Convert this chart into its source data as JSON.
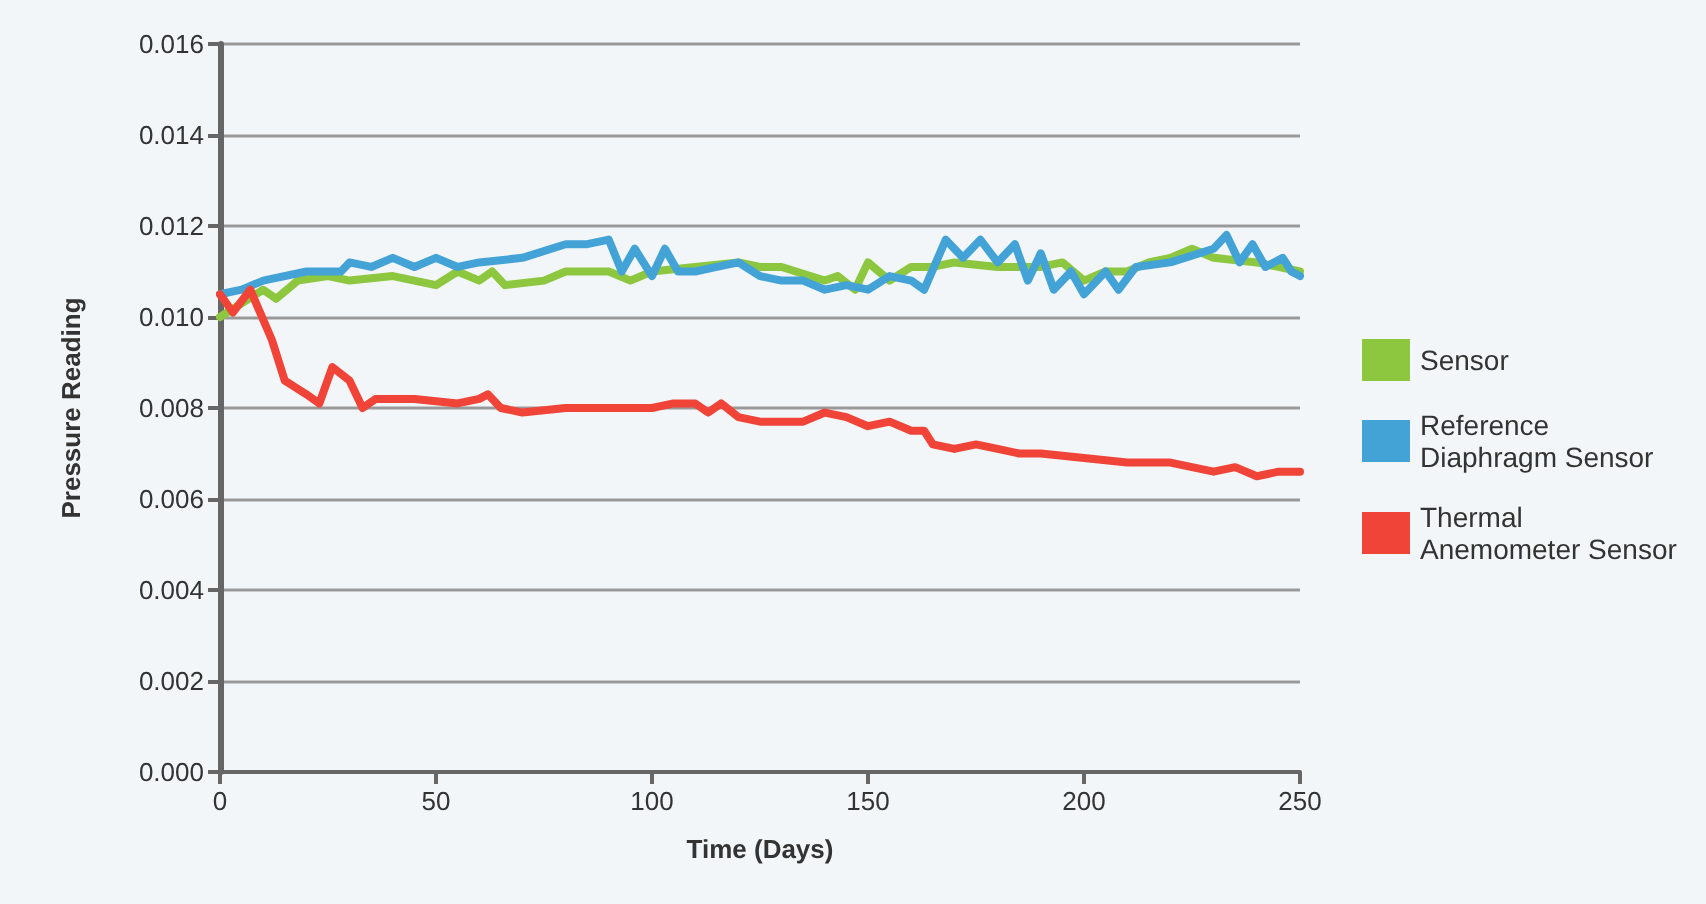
{
  "chart_data": {
    "type": "line",
    "xlabel": "Time (Days)",
    "ylabel": "Pressure Reading",
    "xlim": [
      0,
      250
    ],
    "xticks": [
      0,
      50,
      100,
      150,
      200,
      250
    ],
    "ylim": [
      0,
      0.016
    ],
    "yticks": [
      {
        "value": 0,
        "label": "0.000"
      },
      {
        "value": 0.002,
        "label": "0.002"
      },
      {
        "value": 0.004,
        "label": "0.004"
      },
      {
        "value": 0.006,
        "label": "0.006"
      },
      {
        "value": 0.008,
        "label": "0.008"
      },
      {
        "value": 0.01,
        "label": "0.010"
      },
      {
        "value": 0.012,
        "label": "0.012"
      },
      {
        "value": 0.014,
        "label": "0.014"
      },
      {
        "value": 0.016,
        "label": "0.016"
      }
    ],
    "grid": "y",
    "legend": "right",
    "marker": "none",
    "line_style": "solid",
    "series": [
      {
        "name": "Sensor",
        "color": "#8dc63f",
        "x": [
          0,
          5,
          10,
          13,
          18,
          25,
          30,
          40,
          50,
          55,
          60,
          63,
          66,
          75,
          80,
          90,
          95,
          100,
          110,
          120,
          125,
          130,
          140,
          143,
          147,
          150,
          155,
          160,
          165,
          170,
          180,
          190,
          195,
          200,
          205,
          210,
          215,
          220,
          225,
          230,
          240,
          245,
          250
        ],
        "values": [
          0.01,
          0.0103,
          0.0106,
          0.0104,
          0.0108,
          0.0109,
          0.0108,
          0.0109,
          0.0107,
          0.011,
          0.0108,
          0.011,
          0.0107,
          0.0108,
          0.011,
          0.011,
          0.0108,
          0.011,
          0.0111,
          0.0112,
          0.0111,
          0.0111,
          0.0108,
          0.0109,
          0.0106,
          0.0112,
          0.0108,
          0.0111,
          0.0111,
          0.0112,
          0.0111,
          0.0111,
          0.0112,
          0.0108,
          0.011,
          0.011,
          0.0112,
          0.0113,
          0.0115,
          0.0113,
          0.0112,
          0.0111,
          0.011
        ]
      },
      {
        "name": "Reference Diaphragm Sensor",
        "color": "#44a3d6",
        "x": [
          0,
          5,
          10,
          20,
          28,
          30,
          35,
          40,
          45,
          50,
          55,
          60,
          70,
          80,
          85,
          90,
          93,
          96,
          100,
          103,
          106,
          110,
          115,
          120,
          125,
          130,
          135,
          140,
          145,
          150,
          155,
          160,
          163,
          168,
          172,
          176,
          180,
          184,
          187,
          190,
          193,
          197,
          200,
          205,
          208,
          212,
          220,
          230,
          233,
          236,
          239,
          242,
          246,
          248,
          250
        ],
        "values": [
          0.0105,
          0.0106,
          0.0108,
          0.011,
          0.011,
          0.0112,
          0.0111,
          0.0113,
          0.0111,
          0.0113,
          0.0111,
          0.0112,
          0.0113,
          0.0116,
          0.0116,
          0.0117,
          0.011,
          0.0115,
          0.0109,
          0.0115,
          0.011,
          0.011,
          0.0111,
          0.0112,
          0.0109,
          0.0108,
          0.0108,
          0.0106,
          0.0107,
          0.0106,
          0.0109,
          0.0108,
          0.0106,
          0.0117,
          0.0113,
          0.0117,
          0.0112,
          0.0116,
          0.0108,
          0.0114,
          0.0106,
          0.011,
          0.0105,
          0.011,
          0.0106,
          0.0111,
          0.0112,
          0.0115,
          0.0118,
          0.0112,
          0.0116,
          0.0111,
          0.0113,
          0.011,
          0.0109
        ]
      },
      {
        "name": "Thermal Anemometer Sensor",
        "color": "#f04438",
        "x": [
          0,
          3,
          7,
          12,
          15,
          20,
          23,
          26,
          30,
          33,
          36,
          45,
          55,
          60,
          62,
          65,
          70,
          80,
          90,
          100,
          105,
          110,
          113,
          116,
          120,
          125,
          135,
          140,
          145,
          150,
          155,
          160,
          163,
          165,
          170,
          175,
          180,
          185,
          190,
          200,
          210,
          220,
          225,
          230,
          235,
          240,
          245,
          250
        ],
        "values": [
          0.0105,
          0.0101,
          0.0106,
          0.0095,
          0.0086,
          0.0083,
          0.0081,
          0.0089,
          0.0086,
          0.008,
          0.0082,
          0.0082,
          0.0081,
          0.0082,
          0.0083,
          0.008,
          0.0079,
          0.008,
          0.008,
          0.008,
          0.0081,
          0.0081,
          0.0079,
          0.0081,
          0.0078,
          0.0077,
          0.0077,
          0.0079,
          0.0078,
          0.0076,
          0.0077,
          0.0075,
          0.0075,
          0.0072,
          0.0071,
          0.0072,
          0.0071,
          0.007,
          0.007,
          0.0069,
          0.0068,
          0.0068,
          0.0067,
          0.0066,
          0.0067,
          0.0065,
          0.0066,
          0.0066
        ]
      }
    ]
  }
}
